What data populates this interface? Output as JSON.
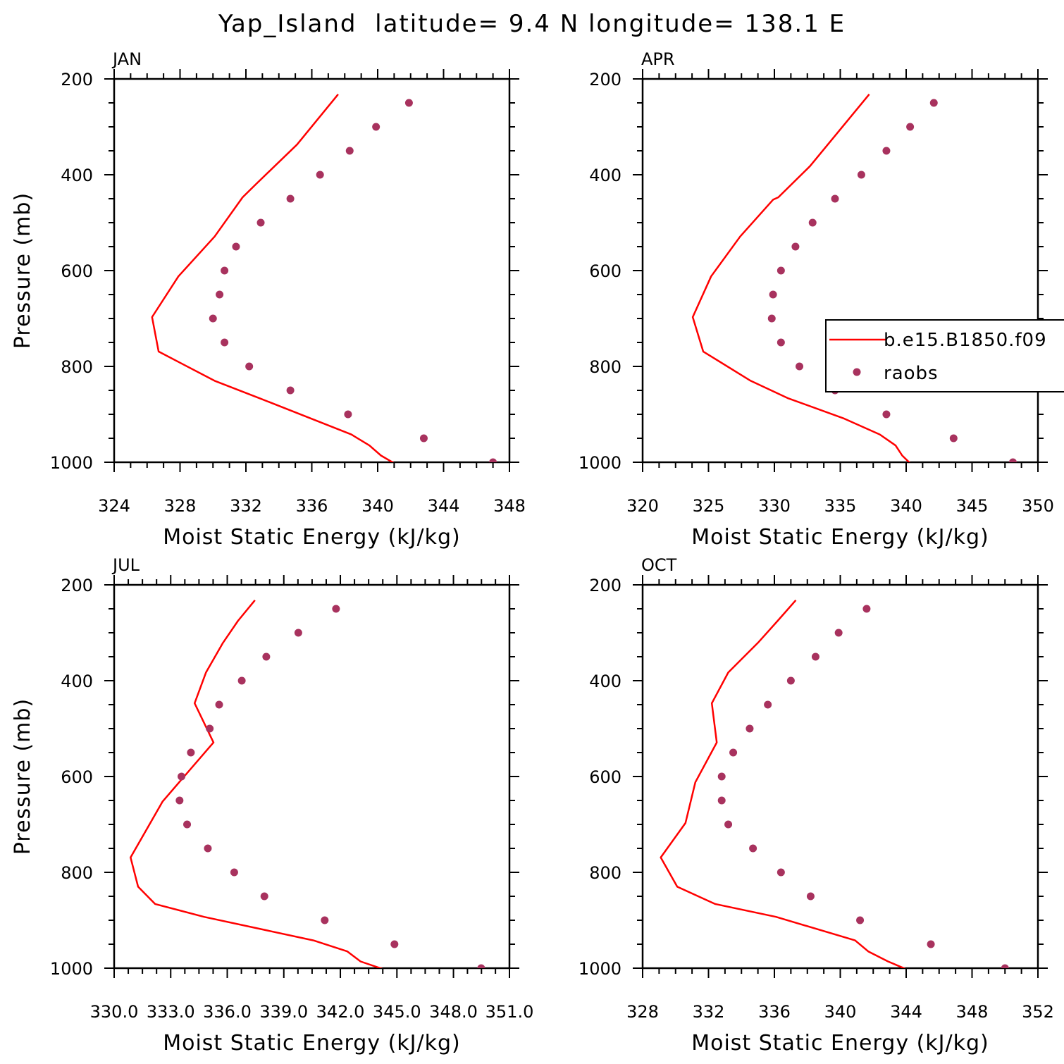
{
  "figure_title": "Yap_Island  latitude= 9.4 N longitude= 138.1 E",
  "colors": {
    "model": "#ff0000",
    "obs": "#a8325e",
    "axis": "#000000"
  },
  "legend": {
    "model_label": "b.e15.B1850.f09",
    "obs_label": "raobs",
    "placement": "right, inside APR panel"
  },
  "chart_data": [
    {
      "type": "line+scatter",
      "panel_label": "JAN",
      "xlabel": "Moist Static Energy (kJ/kg)",
      "ylabel": "Pressure (mb)",
      "xlim": [
        324,
        348
      ],
      "ylim": [
        1000,
        200
      ],
      "xticks": [
        324,
        328,
        332,
        336,
        340,
        344,
        348
      ],
      "xtick_labels": [
        "324",
        "328",
        "332",
        "336",
        "340",
        "344",
        "348"
      ],
      "yticks": [
        200,
        400,
        600,
        800,
        1000
      ],
      "ytick_labels": [
        "200",
        "400",
        "600",
        "800",
        "1000"
      ],
      "series": [
        {
          "name": "b.e15.B1850.f09",
          "kind": "line",
          "x": [
            337.6,
            335.1,
            332.6,
            331.8,
            330.1,
            327.9,
            326.3,
            326.7,
            330.1,
            332.8,
            338.4,
            339.5,
            340.2,
            341.0
          ],
          "y": [
            232,
            337,
            420,
            447,
            529,
            612,
            697,
            769,
            830,
            866,
            942,
            965,
            986,
            1002
          ]
        },
        {
          "name": "raobs",
          "kind": "scatter",
          "x": [
            341.9,
            339.9,
            338.3,
            336.5,
            334.7,
            332.9,
            331.4,
            330.7,
            330.4,
            330.0,
            330.7,
            332.2,
            334.7,
            338.2,
            342.8,
            347.0
          ],
          "y": [
            250,
            300,
            350,
            400,
            450,
            500,
            550,
            600,
            650,
            700,
            750,
            800,
            850,
            900,
            950,
            1000
          ]
        }
      ]
    },
    {
      "type": "line+scatter",
      "panel_label": "APR",
      "xlabel": "Moist Static Energy (kJ/kg)",
      "ylabel": "",
      "xlim": [
        320,
        350
      ],
      "ylim": [
        1000,
        200
      ],
      "xticks": [
        320,
        325,
        330,
        335,
        340,
        345,
        350
      ],
      "xtick_labels": [
        "320",
        "325",
        "330",
        "335",
        "340",
        "345",
        "350"
      ],
      "yticks": [
        200,
        400,
        600,
        800,
        1000
      ],
      "ytick_labels": [
        "200",
        "400",
        "600",
        "800",
        "1000"
      ],
      "series": [
        {
          "name": "b.e15.B1850.f09",
          "kind": "line",
          "x": [
            337.2,
            332.7,
            330.3,
            329.9,
            327.4,
            325.2,
            323.8,
            324.6,
            328.2,
            331.0,
            335.3,
            338.0,
            339.2,
            339.7,
            340.3
          ],
          "y": [
            232,
            382,
            447,
            452,
            529,
            612,
            697,
            769,
            830,
            866,
            909,
            942,
            965,
            986,
            1002
          ]
        },
        {
          "name": "raobs",
          "kind": "scatter",
          "x": [
            342.1,
            340.3,
            338.5,
            336.6,
            334.6,
            332.9,
            331.6,
            330.5,
            329.9,
            329.8,
            330.5,
            331.9,
            334.6,
            338.5,
            343.6,
            348.1
          ],
          "y": [
            250,
            300,
            350,
            400,
            450,
            500,
            550,
            600,
            650,
            700,
            750,
            800,
            850,
            900,
            950,
            1000
          ]
        }
      ]
    },
    {
      "type": "line+scatter",
      "panel_label": "JUL",
      "xlabel": "Moist Static Energy (kJ/kg)",
      "ylabel": "Pressure (mb)",
      "xlim": [
        330.03,
        351.0
      ],
      "ylim": [
        1000,
        200
      ],
      "xticks": [
        330.03,
        333.03,
        336.03,
        339.03,
        342.03,
        345.03,
        348.03,
        351.0
      ],
      "xtick_labels": [
        "330.0",
        "333.0",
        "336.0",
        "339.0",
        "342.0",
        "345.0",
        "348.0",
        "351.0"
      ],
      "yticks": [
        200,
        400,
        600,
        800,
        1000
      ],
      "ytick_labels": [
        "200",
        "400",
        "600",
        "800",
        "1000"
      ],
      "series": [
        {
          "name": "b.e15.B1850.f09",
          "kind": "line",
          "x": [
            337.5,
            336.6,
            335.8,
            334.9,
            334.3,
            335.3,
            332.6,
            330.9,
            331.3,
            332.2,
            334.8,
            340.6,
            342.4,
            343.1,
            344.3
          ],
          "y": [
            232,
            275,
            321,
            383,
            447,
            529,
            652,
            769,
            830,
            866,
            893,
            942,
            965,
            986,
            1002
          ]
        },
        {
          "name": "raobs",
          "kind": "scatter",
          "x": [
            341.8,
            339.8,
            338.1,
            336.8,
            335.6,
            335.1,
            334.1,
            333.6,
            333.5,
            333.9,
            335.0,
            336.4,
            338.0,
            341.2,
            344.9,
            349.5
          ],
          "y": [
            250,
            300,
            350,
            400,
            450,
            500,
            550,
            600,
            650,
            700,
            750,
            800,
            850,
            900,
            950,
            1000
          ]
        }
      ]
    },
    {
      "type": "line+scatter",
      "panel_label": "OCT",
      "xlabel": "Moist Static Energy (kJ/kg)",
      "ylabel": "",
      "xlim": [
        328,
        352
      ],
      "ylim": [
        1000,
        200
      ],
      "xticks": [
        328,
        332,
        336,
        340,
        344,
        348,
        352
      ],
      "xtick_labels": [
        "328",
        "332",
        "336",
        "340",
        "344",
        "348",
        "352"
      ],
      "yticks": [
        200,
        400,
        600,
        800,
        1000
      ],
      "ytick_labels": [
        "200",
        "400",
        "600",
        "800",
        "1000"
      ],
      "series": [
        {
          "name": "b.e15.B1850.f09",
          "kind": "line",
          "x": [
            337.3,
            336.2,
            335.0,
            333.2,
            332.2,
            332.5,
            331.2,
            330.6,
            329.1,
            330.1,
            332.4,
            336.1,
            340.9,
            341.7,
            342.9,
            344.0
          ],
          "y": [
            232,
            275,
            321,
            383,
            447,
            529,
            612,
            697,
            769,
            830,
            866,
            893,
            942,
            965,
            986,
            1002
          ]
        },
        {
          "name": "raobs",
          "kind": "scatter",
          "x": [
            341.6,
            339.9,
            338.5,
            337.0,
            335.6,
            334.5,
            333.5,
            332.8,
            332.8,
            333.2,
            334.7,
            336.4,
            338.2,
            341.2,
            345.5,
            350.0
          ],
          "y": [
            250,
            300,
            350,
            400,
            450,
            500,
            550,
            600,
            650,
            700,
            750,
            800,
            850,
            900,
            950,
            1000
          ]
        }
      ]
    }
  ]
}
